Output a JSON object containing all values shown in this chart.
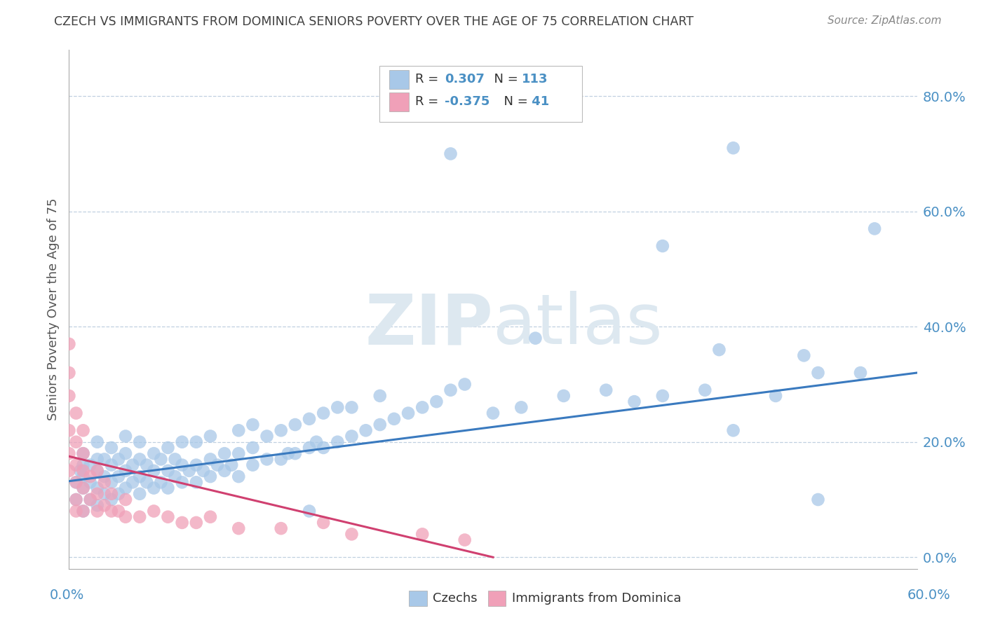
{
  "title": "CZECH VS IMMIGRANTS FROM DOMINICA SENIORS POVERTY OVER THE AGE OF 75 CORRELATION CHART",
  "source": "Source: ZipAtlas.com",
  "ylabel": "Seniors Poverty Over the Age of 75",
  "right_yticks": [
    "0.0%",
    "20.0%",
    "40.0%",
    "60.0%",
    "80.0%"
  ],
  "right_ytick_vals": [
    0.0,
    0.2,
    0.4,
    0.6,
    0.8
  ],
  "xlim": [
    0.0,
    0.6
  ],
  "ylim": [
    -0.02,
    0.88
  ],
  "czech_R": 0.307,
  "czech_N": 113,
  "dominica_R": -0.375,
  "dominica_N": 41,
  "czech_color": "#a8c8e8",
  "dominica_color": "#f0a0b8",
  "czech_line_color": "#3a7abf",
  "dominica_line_color": "#d04070",
  "watermark_color": "#dde8f0",
  "background_color": "#ffffff",
  "grid_color": "#c0d0e0",
  "title_color": "#404040",
  "axis_label_color": "#4a90c4",
  "czech_scatter_x": [
    0.005,
    0.005,
    0.008,
    0.01,
    0.01,
    0.01,
    0.01,
    0.01,
    0.015,
    0.015,
    0.015,
    0.02,
    0.02,
    0.02,
    0.02,
    0.02,
    0.025,
    0.025,
    0.025,
    0.03,
    0.03,
    0.03,
    0.03,
    0.035,
    0.035,
    0.035,
    0.04,
    0.04,
    0.04,
    0.04,
    0.045,
    0.045,
    0.05,
    0.05,
    0.05,
    0.05,
    0.055,
    0.055,
    0.06,
    0.06,
    0.06,
    0.065,
    0.065,
    0.07,
    0.07,
    0.07,
    0.075,
    0.075,
    0.08,
    0.08,
    0.08,
    0.085,
    0.09,
    0.09,
    0.09,
    0.095,
    0.1,
    0.1,
    0.1,
    0.105,
    0.11,
    0.11,
    0.115,
    0.12,
    0.12,
    0.12,
    0.13,
    0.13,
    0.13,
    0.14,
    0.14,
    0.15,
    0.15,
    0.155,
    0.16,
    0.16,
    0.17,
    0.17,
    0.175,
    0.18,
    0.18,
    0.19,
    0.19,
    0.2,
    0.2,
    0.21,
    0.22,
    0.22,
    0.23,
    0.24,
    0.25,
    0.26,
    0.27,
    0.28,
    0.3,
    0.32,
    0.35,
    0.38,
    0.4,
    0.42,
    0.45,
    0.47,
    0.5,
    0.53,
    0.27,
    0.33,
    0.47,
    0.53,
    0.57,
    0.52,
    0.42,
    0.46,
    0.56,
    0.17
  ],
  "czech_scatter_y": [
    0.13,
    0.1,
    0.15,
    0.08,
    0.12,
    0.14,
    0.16,
    0.18,
    0.1,
    0.13,
    0.16,
    0.09,
    0.12,
    0.15,
    0.17,
    0.2,
    0.11,
    0.14,
    0.17,
    0.1,
    0.13,
    0.16,
    0.19,
    0.11,
    0.14,
    0.17,
    0.12,
    0.15,
    0.18,
    0.21,
    0.13,
    0.16,
    0.11,
    0.14,
    0.17,
    0.2,
    0.13,
    0.16,
    0.12,
    0.15,
    0.18,
    0.13,
    0.17,
    0.12,
    0.15,
    0.19,
    0.14,
    0.17,
    0.13,
    0.16,
    0.2,
    0.15,
    0.13,
    0.16,
    0.2,
    0.15,
    0.14,
    0.17,
    0.21,
    0.16,
    0.15,
    0.18,
    0.16,
    0.14,
    0.18,
    0.22,
    0.16,
    0.19,
    0.23,
    0.17,
    0.21,
    0.17,
    0.22,
    0.18,
    0.18,
    0.23,
    0.19,
    0.24,
    0.2,
    0.19,
    0.25,
    0.2,
    0.26,
    0.21,
    0.26,
    0.22,
    0.23,
    0.28,
    0.24,
    0.25,
    0.26,
    0.27,
    0.29,
    0.3,
    0.25,
    0.26,
    0.28,
    0.29,
    0.27,
    0.28,
    0.29,
    0.22,
    0.28,
    0.1,
    0.7,
    0.38,
    0.71,
    0.32,
    0.57,
    0.35,
    0.54,
    0.36,
    0.32,
    0.08
  ],
  "dominica_scatter_x": [
    0.0,
    0.0,
    0.0,
    0.0,
    0.0,
    0.0,
    0.005,
    0.005,
    0.005,
    0.005,
    0.005,
    0.005,
    0.01,
    0.01,
    0.01,
    0.01,
    0.01,
    0.015,
    0.015,
    0.02,
    0.02,
    0.02,
    0.025,
    0.025,
    0.03,
    0.03,
    0.035,
    0.04,
    0.04,
    0.05,
    0.06,
    0.07,
    0.08,
    0.09,
    0.1,
    0.12,
    0.15,
    0.18,
    0.2,
    0.25,
    0.28
  ],
  "dominica_scatter_y": [
    0.15,
    0.18,
    0.22,
    0.28,
    0.32,
    0.37,
    0.1,
    0.13,
    0.16,
    0.2,
    0.25,
    0.08,
    0.08,
    0.12,
    0.15,
    0.18,
    0.22,
    0.1,
    0.14,
    0.08,
    0.11,
    0.15,
    0.09,
    0.13,
    0.08,
    0.11,
    0.08,
    0.07,
    0.1,
    0.07,
    0.08,
    0.07,
    0.06,
    0.06,
    0.07,
    0.05,
    0.05,
    0.06,
    0.04,
    0.04,
    0.03
  ],
  "czech_trend_x": [
    0.0,
    0.6
  ],
  "czech_trend_y": [
    0.132,
    0.32
  ],
  "dominica_trend_x": [
    0.0,
    0.3
  ],
  "dominica_trend_y": [
    0.175,
    0.0
  ]
}
